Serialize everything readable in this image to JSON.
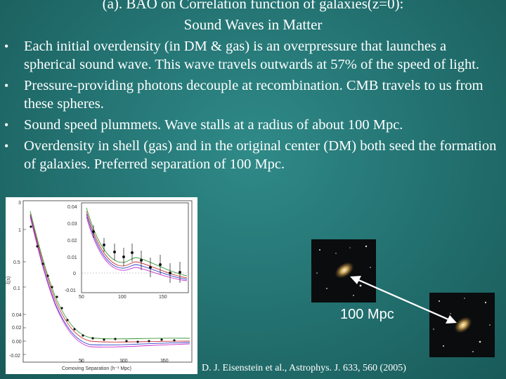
{
  "slide": {
    "title_line1": "(a). BAO on Correlation function of galaxies(z=0):",
    "title_line2": "Sound Waves in Matter",
    "bullets": [
      "Each initial overdensity (in DM & gas) is an overpressure that launches a spherical sound wave. This wave travels outwards at 57% of the speed of light.",
      "Pressure-providing photons decouple at recombination.  CMB travels to us from these spheres.",
      "Sound speed plummets.  Wave stalls at a radius of about 100 Mpc.",
      "Overdensity in shell (gas) and in the original center (DM) both seed the formation of galaxies.  Preferred separation of 100 Mpc."
    ],
    "bullet_glyph": "•",
    "distance_label": "100 Mpc",
    "citation": "D. J. Eisenstein et al., Astrophys. J. 633, 560 (2005)"
  },
  "figure": {
    "xlabel": "Comoving Separation (h⁻¹ Mpc)",
    "ylabel": "ξ(s)",
    "main_ticks_y": [
      "3",
      "1",
      "0.5",
      "0.1",
      "0.04",
      "0.02",
      "0.00",
      "-0.02"
    ],
    "main_ticks_x": [
      "50",
      "100",
      "150"
    ],
    "inset_ticks_y": [
      "0.04",
      "0.03",
      "0.02",
      "0.01",
      "0",
      "-0.01"
    ],
    "inset_ticks_x": [
      "50",
      "100",
      "150"
    ]
  },
  "colors": {
    "background": "#22706f",
    "text": "#ffffff",
    "arrow": "#ffffff",
    "curve_green": "#3a9a3a",
    "curve_red": "#cc3333",
    "curve_blue": "#3344cc",
    "curve_magenta": "#cc33cc"
  }
}
